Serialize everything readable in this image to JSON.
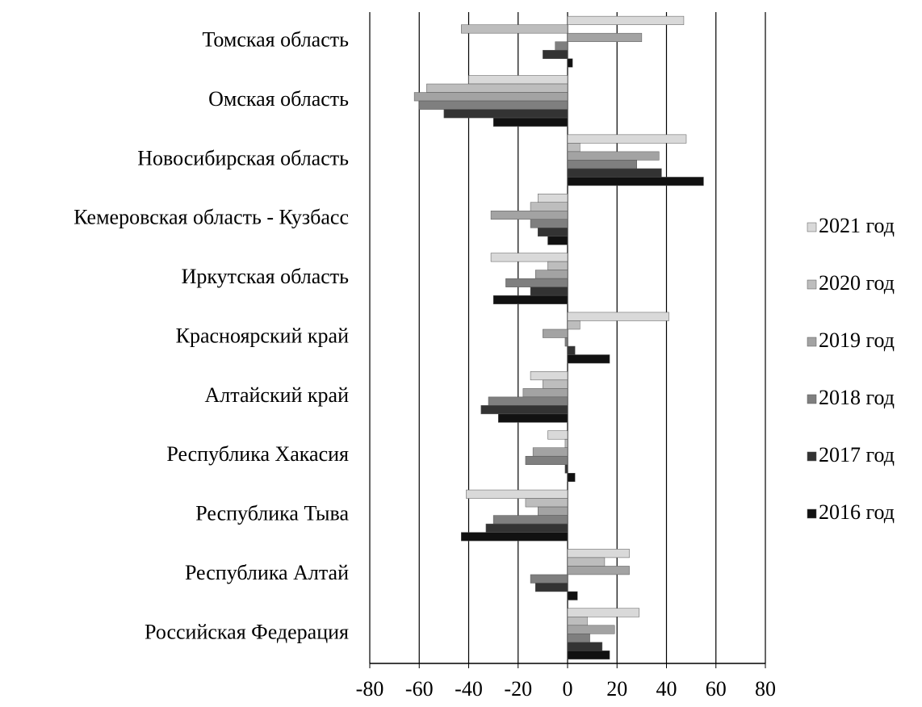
{
  "chart_data": {
    "type": "bar",
    "orientation": "horizontal",
    "categories": [
      "Томская область",
      "Омская область",
      "Новосибирская область",
      "Кемеровская область - Кузбасс",
      "Иркутская область",
      "Красноярский край",
      "Алтайский край",
      "Республика Хакасия",
      "Республика Тыва",
      "Республика Алтай",
      "Российская Федерация"
    ],
    "series": [
      {
        "name": "2021 год",
        "color": "#d9d9d9",
        "values": [
          47,
          -40,
          48,
          -12,
          -31,
          41,
          -15,
          -8,
          -41,
          25,
          29
        ]
      },
      {
        "name": "2020 год",
        "color": "#bdbdbd",
        "values": [
          -43,
          -57,
          5,
          -15,
          -8,
          5,
          -10,
          -1,
          -17,
          15,
          8
        ]
      },
      {
        "name": "2019 год",
        "color": "#a3a3a3",
        "values": [
          30,
          -62,
          37,
          -31,
          -13,
          -10,
          -18,
          -14,
          -12,
          25,
          19
        ]
      },
      {
        "name": "2018 год",
        "color": "#7f7f7f",
        "values": [
          -5,
          -60,
          28,
          -15,
          -25,
          -1,
          -32,
          -17,
          -30,
          -15,
          9
        ]
      },
      {
        "name": "2017 год",
        "color": "#333333",
        "values": [
          -10,
          -50,
          38,
          -12,
          -15,
          3,
          -35,
          -1,
          -33,
          -13,
          14
        ]
      },
      {
        "name": "2016 год",
        "color": "#111111",
        "values": [
          2,
          -30,
          55,
          -8,
          -30,
          17,
          -28,
          3,
          -43,
          4,
          17
        ]
      }
    ],
    "xlim": [
      -80,
      80
    ],
    "xticks": [
      -80,
      -60,
      -40,
      -20,
      0,
      20,
      40,
      60,
      80
    ],
    "grid": true,
    "legend": "right"
  }
}
